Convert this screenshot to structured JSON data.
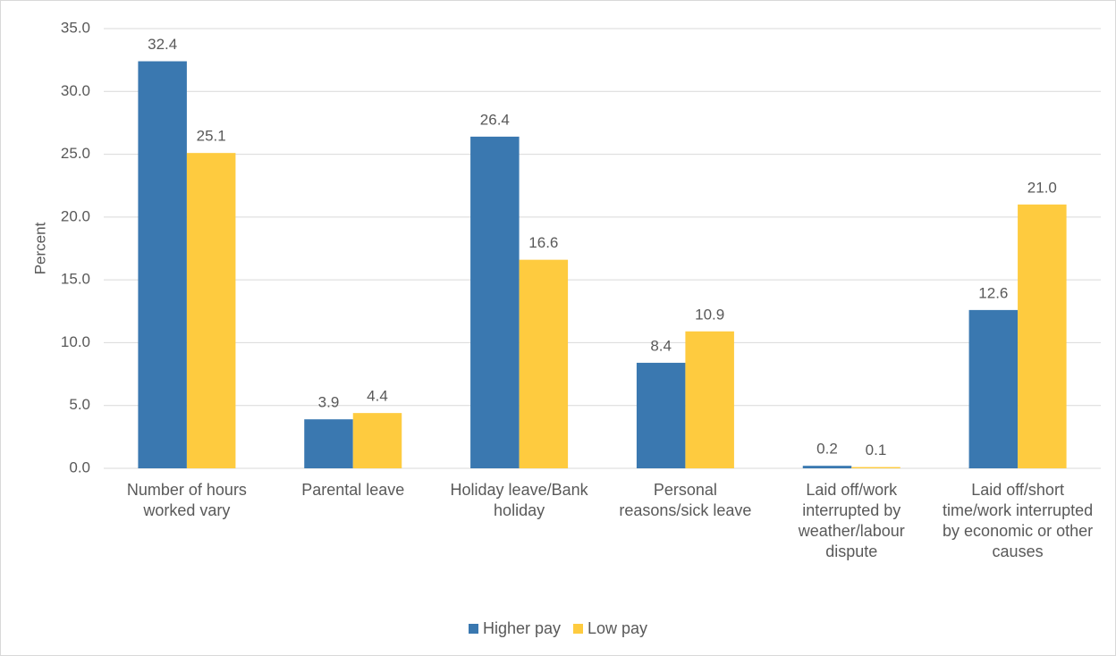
{
  "chart_data": {
    "type": "bar",
    "y_label": "Percent",
    "categories": [
      "Number of hours worked vary",
      "Parental leave",
      "Holiday leave/Bank holiday",
      "Personal reasons/sick leave",
      "Laid off/work interrupted by weather/labour dispute",
      "Laid off/short time/work interrupted by economic or other causes"
    ],
    "series": [
      {
        "name": "Higher pay",
        "color": "#3a78b0",
        "values": [
          32.4,
          3.9,
          26.4,
          8.4,
          0.2,
          12.6
        ],
        "value_labels": [
          "32.4",
          "3.9",
          "26.4",
          "8.4",
          "0.2",
          "12.6"
        ]
      },
      {
        "name": "Low pay",
        "color": "#fecb3f",
        "values": [
          25.1,
          4.4,
          16.6,
          10.9,
          0.1,
          21.0
        ],
        "value_labels": [
          "25.1",
          "4.4",
          "16.6",
          "10.9",
          "0.1",
          "21.0"
        ]
      }
    ],
    "ylim": [
      0,
      35
    ],
    "yticks": [
      {
        "value": 0,
        "label": "0.0"
      },
      {
        "value": 5,
        "label": "5.0"
      },
      {
        "value": 10,
        "label": "10.0"
      },
      {
        "value": 15,
        "label": "15.0"
      },
      {
        "value": 20,
        "label": "20.0"
      },
      {
        "value": 25,
        "label": "25.0"
      },
      {
        "value": 30,
        "label": "30.0"
      },
      {
        "value": 35,
        "label": "35.0"
      }
    ],
    "grid": true,
    "legend": "bottom"
  }
}
